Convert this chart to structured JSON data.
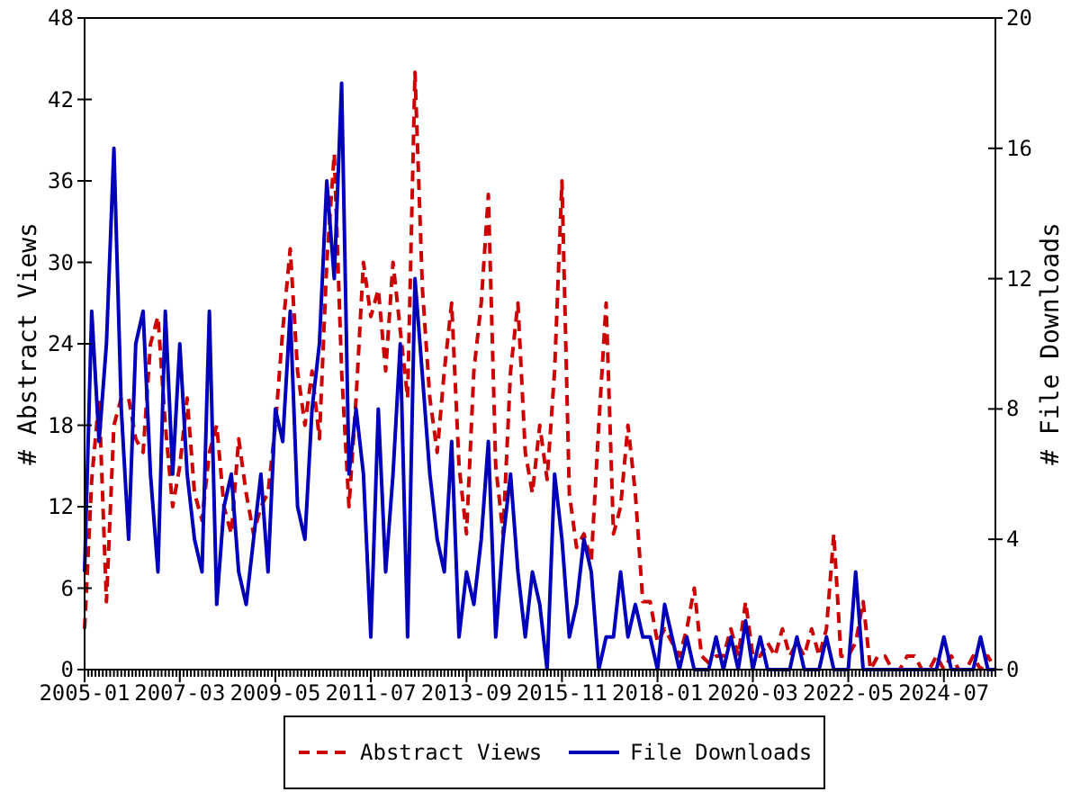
{
  "chart_data": {
    "type": "line",
    "xlabel": null,
    "ylabel": "# Abstract Views",
    "y2label": "# File Downloads",
    "x": [
      "2005-01",
      "2005-03",
      "2005-05",
      "2005-07",
      "2005-09",
      "2005-11",
      "2006-01",
      "2006-03",
      "2006-05",
      "2006-07",
      "2006-09",
      "2006-11",
      "2007-01",
      "2007-03",
      "2007-05",
      "2007-07",
      "2007-09",
      "2007-11",
      "2008-01",
      "2008-03",
      "2008-05",
      "2008-07",
      "2008-09",
      "2008-11",
      "2009-01",
      "2009-03",
      "2009-05",
      "2009-07",
      "2009-09",
      "2009-11",
      "2010-01",
      "2010-03",
      "2010-05",
      "2010-07",
      "2010-09",
      "2010-11",
      "2011-01",
      "2011-03",
      "2011-05",
      "2011-07",
      "2011-09",
      "2011-11",
      "2012-01",
      "2012-03",
      "2012-05",
      "2012-07",
      "2012-09",
      "2012-11",
      "2013-01",
      "2013-03",
      "2013-05",
      "2013-07",
      "2013-09",
      "2013-11",
      "2014-01",
      "2014-03",
      "2014-05",
      "2014-07",
      "2014-09",
      "2014-11",
      "2015-01",
      "2015-03",
      "2015-05",
      "2015-07",
      "2015-09",
      "2015-11",
      "2016-01",
      "2016-03",
      "2016-05",
      "2016-07",
      "2016-09",
      "2016-11",
      "2017-01",
      "2017-03",
      "2017-05",
      "2017-07",
      "2017-09",
      "2017-11",
      "2018-01",
      "2018-03",
      "2018-05",
      "2018-07",
      "2018-09",
      "2018-11",
      "2019-01",
      "2019-03",
      "2019-05",
      "2019-07",
      "2019-09",
      "2019-11",
      "2020-01",
      "2020-03",
      "2020-05",
      "2020-07",
      "2020-09",
      "2020-11",
      "2021-01",
      "2021-03",
      "2021-05",
      "2021-07",
      "2021-09",
      "2021-11",
      "2022-01",
      "2022-03",
      "2022-05",
      "2022-07",
      "2022-09",
      "2022-11",
      "2023-01",
      "2023-03",
      "2023-05",
      "2023-07",
      "2023-09",
      "2023-11",
      "2024-01",
      "2024-03",
      "2024-05",
      "2024-07",
      "2024-09",
      "2024-11",
      "2025-01",
      "2025-03",
      "2025-05",
      "2025-07",
      "2025-09"
    ],
    "series": [
      {
        "name": "Abstract Views",
        "color": "#cc0000",
        "line_style": "dashed",
        "values": [
          3,
          14,
          20,
          5,
          18,
          20,
          20,
          17,
          16,
          24,
          26,
          18,
          12,
          15,
          20,
          13,
          11,
          16,
          18,
          12,
          10,
          17,
          13,
          10,
          12,
          13,
          18,
          25,
          31,
          22,
          18,
          22,
          17,
          30,
          38,
          22,
          12,
          20,
          30,
          26,
          28,
          22,
          30,
          25,
          20,
          44,
          28,
          20,
          16,
          22,
          27,
          15,
          10,
          22,
          27,
          35,
          15,
          10,
          22,
          27,
          16,
          13,
          18,
          14,
          22,
          36,
          13,
          9,
          10,
          8,
          18,
          27,
          10,
          12,
          18,
          13,
          5,
          5,
          2,
          3,
          2,
          1,
          3,
          6,
          1,
          0.5,
          1,
          1,
          3,
          1,
          5,
          1,
          1,
          2,
          1,
          3,
          1,
          2,
          1,
          3,
          1,
          3,
          10,
          1,
          1,
          2,
          5,
          0,
          1,
          1,
          0,
          0,
          1,
          1,
          0,
          0,
          1,
          0,
          1,
          0,
          0,
          1,
          0,
          1,
          0
        ]
      },
      {
        "name": "File Downloads",
        "color": "#0000bb",
        "line_style": "solid",
        "axis": "y2",
        "values": [
          3,
          11,
          7,
          10,
          16,
          8,
          4,
          10,
          11,
          6,
          3,
          11,
          6,
          10,
          6,
          4,
          3,
          11,
          2,
          5,
          6,
          3,
          2,
          4,
          6,
          3,
          8,
          7,
          11,
          5,
          4,
          8,
          10,
          15,
          12,
          18,
          6,
          8,
          6,
          1,
          8,
          3,
          6,
          10,
          1,
          12,
          9,
          6,
          4,
          3,
          7,
          1,
          3,
          2,
          4,
          7,
          1,
          4,
          6,
          3,
          1,
          3,
          2,
          0,
          6,
          4,
          1,
          2,
          4,
          3,
          0,
          1,
          1,
          3,
          1,
          2,
          1,
          1,
          0,
          2,
          1,
          0,
          1,
          0,
          0,
          0,
          1,
          0,
          1,
          0,
          1.5,
          0,
          1,
          0,
          0,
          0,
          0,
          1,
          0,
          0,
          0,
          1,
          0,
          0,
          0,
          3,
          0,
          0,
          0,
          0,
          0,
          0,
          0,
          0,
          0,
          0,
          0,
          1,
          0,
          0,
          0,
          0,
          1,
          0,
          0
        ]
      }
    ],
    "xlim": [
      "2005-01",
      "2025-09"
    ],
    "xticks": [
      "2005-01",
      "2007-03",
      "2009-05",
      "2011-07",
      "2013-09",
      "2015-11",
      "2018-01",
      "2020-03",
      "2022-05",
      "2024-07"
    ],
    "ylim": [
      0,
      48
    ],
    "yticks": [
      0,
      6,
      12,
      18,
      24,
      30,
      36,
      42,
      48
    ],
    "y2lim": [
      0,
      20
    ],
    "y2ticks": [
      0,
      4,
      8,
      12,
      16,
      20
    ],
    "grid": false,
    "legend": "bottom"
  }
}
